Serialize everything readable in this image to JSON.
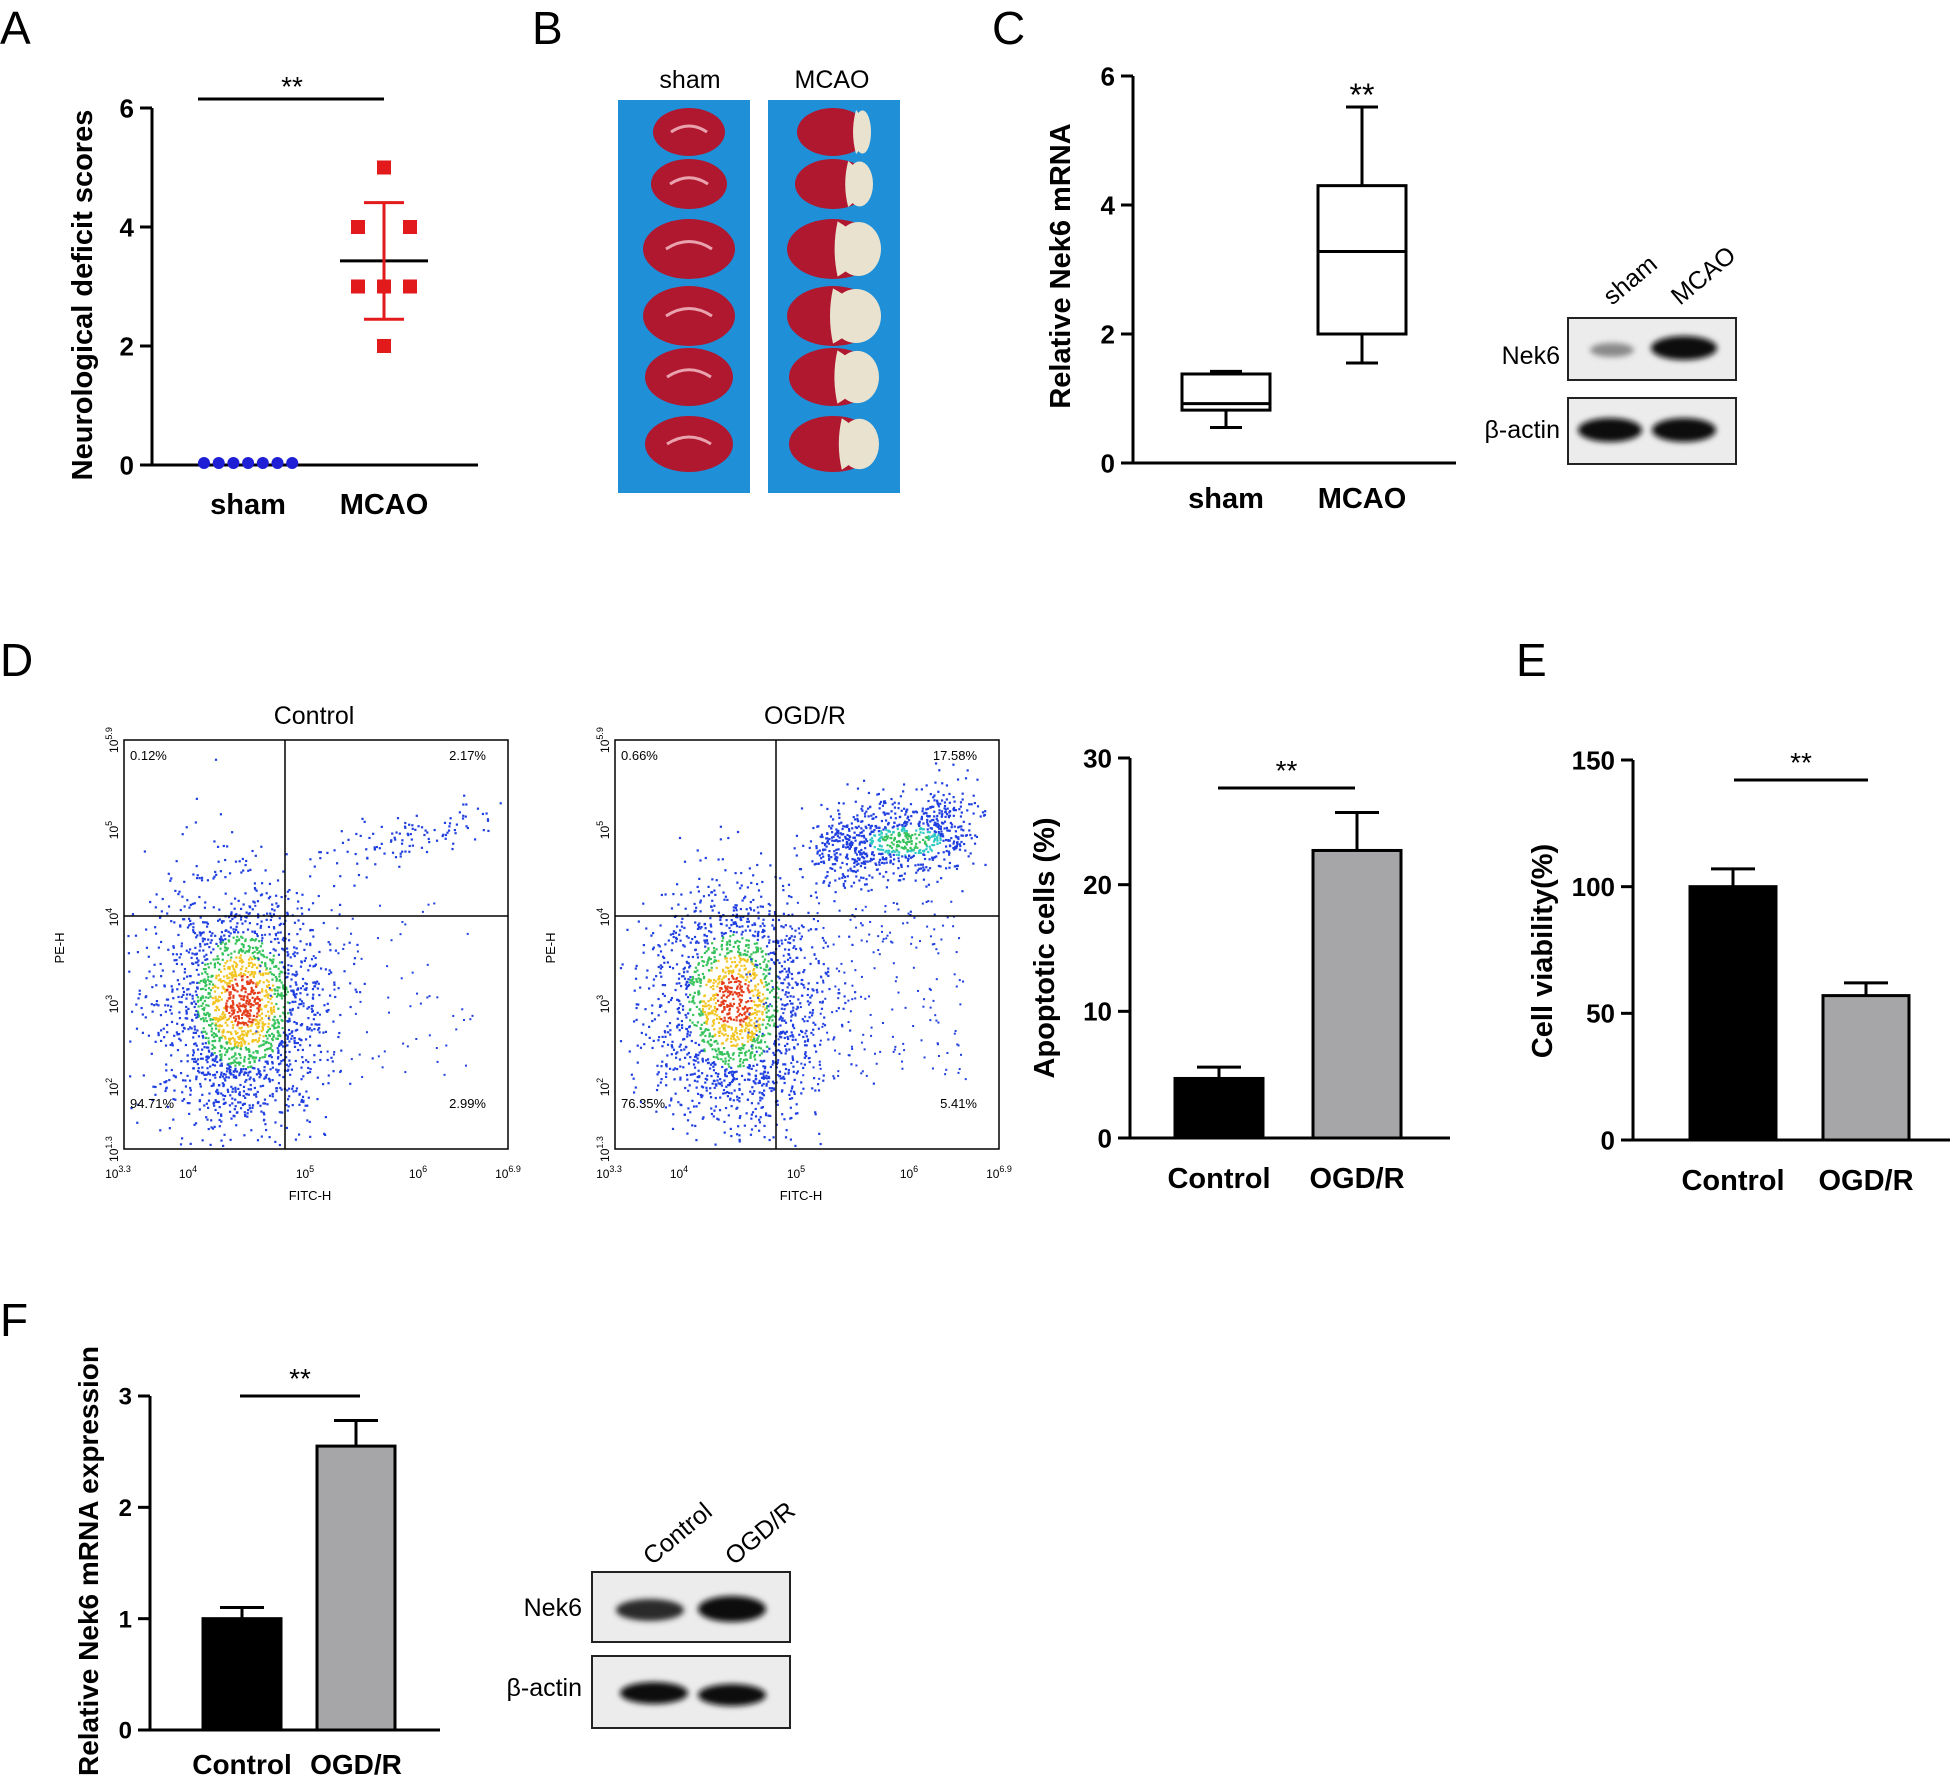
{
  "panels": {
    "A": "A",
    "B": "B",
    "C": "C",
    "D": "D",
    "E": "E",
    "F": "F"
  },
  "blot_labels": {
    "nek6": "Nek6",
    "actin": "β-actin",
    "c_lanes": [
      "sham",
      "MCAO"
    ],
    "f_lanes": [
      "Control",
      "OGD/R"
    ]
  },
  "photo_labels": [
    "sham",
    "MCAO"
  ],
  "flow": {
    "xlabel": "FITC-H",
    "ylabel": "PE-H",
    "xticks": [
      {
        "base": "10",
        "exp": "3.3"
      },
      {
        "base": "10",
        "exp": "4"
      },
      {
        "base": "10",
        "exp": "5"
      },
      {
        "base": "10",
        "exp": "6"
      },
      {
        "base": "10",
        "exp": "6.9"
      }
    ],
    "yticks": [
      {
        "base": "10",
        "exp": "1.3"
      },
      {
        "base": "10",
        "exp": "2"
      },
      {
        "base": "10",
        "exp": "3"
      },
      {
        "base": "10",
        "exp": "4"
      },
      {
        "base": "10",
        "exp": "5"
      },
      {
        "base": "10",
        "exp": "5.9"
      }
    ],
    "plots": [
      {
        "title": "Control",
        "q": {
          "ul": "0.12%",
          "ur": "2.17%",
          "ll": "94.71%",
          "lr": "2.99%"
        }
      },
      {
        "title": "OGD/R",
        "q": {
          "ul": "0.66%",
          "ur": "17.58%",
          "ll": "76.35%",
          "lr": "5.41%"
        }
      }
    ]
  },
  "colors": {
    "sham_dot": "#1f1fd6",
    "mcao_square": "#e31a1c",
    "bar_control": "#000000",
    "bar_ogdr": "#a6a6a8",
    "tissue_bg": "#1e8fd8",
    "tissue_red": "#b01830",
    "infarct": "#e8e2cf"
  },
  "chart_data": [
    {
      "id": "A",
      "type": "scatter",
      "categories": [
        "sham",
        "MCAO"
      ],
      "ylabel": "Neurological deficit scores",
      "ylim": [
        0,
        6
      ],
      "yticks": [
        0,
        2,
        4,
        6
      ],
      "series": [
        {
          "category": "sham",
          "values": [
            0,
            0,
            0,
            0,
            0,
            0,
            0
          ],
          "mean": 0
        },
        {
          "category": "MCAO",
          "values": [
            5,
            4,
            4,
            3,
            3,
            3,
            2
          ],
          "mean": 3.43,
          "sd": 0.98
        }
      ],
      "significance": "**"
    },
    {
      "id": "C",
      "type": "box",
      "categories": [
        "sham",
        "MCAO"
      ],
      "ylabel": "Relative Nek6 mRNA",
      "ylim": [
        0,
        6
      ],
      "yticks": [
        0,
        2,
        4,
        6
      ],
      "boxes": [
        {
          "category": "sham",
          "min": 0.55,
          "q1": 0.82,
          "median": 0.92,
          "q3": 1.38,
          "max": 1.42
        },
        {
          "category": "MCAO",
          "min": 1.55,
          "q1": 2.0,
          "median": 3.28,
          "q3": 4.3,
          "max": 5.52
        }
      ],
      "significance": "**"
    },
    {
      "id": "D",
      "type": "bar",
      "categories": [
        "Control",
        "OGD/R"
      ],
      "values": [
        4.7,
        22.7
      ],
      "errors": [
        0.9,
        3.0
      ],
      "ylabel": "Apoptotic cells (%)",
      "ylim": [
        0,
        30
      ],
      "yticks": [
        0,
        10,
        20,
        30
      ],
      "significance": "**"
    },
    {
      "id": "E",
      "type": "bar",
      "categories": [
        "Control",
        "OGD/R"
      ],
      "values": [
        100,
        57
      ],
      "errors": [
        7,
        5
      ],
      "ylabel": "Cell viability(%)",
      "ylim": [
        0,
        150
      ],
      "yticks": [
        0,
        50,
        100,
        150
      ],
      "significance": "**"
    },
    {
      "id": "F",
      "type": "bar",
      "categories": [
        "Control",
        "OGD/R"
      ],
      "values": [
        1.0,
        2.55
      ],
      "errors": [
        0.1,
        0.23
      ],
      "ylabel": "Relative Nek6 mRNA expression",
      "ylim": [
        0,
        3
      ],
      "yticks": [
        0,
        1,
        2,
        3
      ],
      "significance": "**"
    }
  ]
}
